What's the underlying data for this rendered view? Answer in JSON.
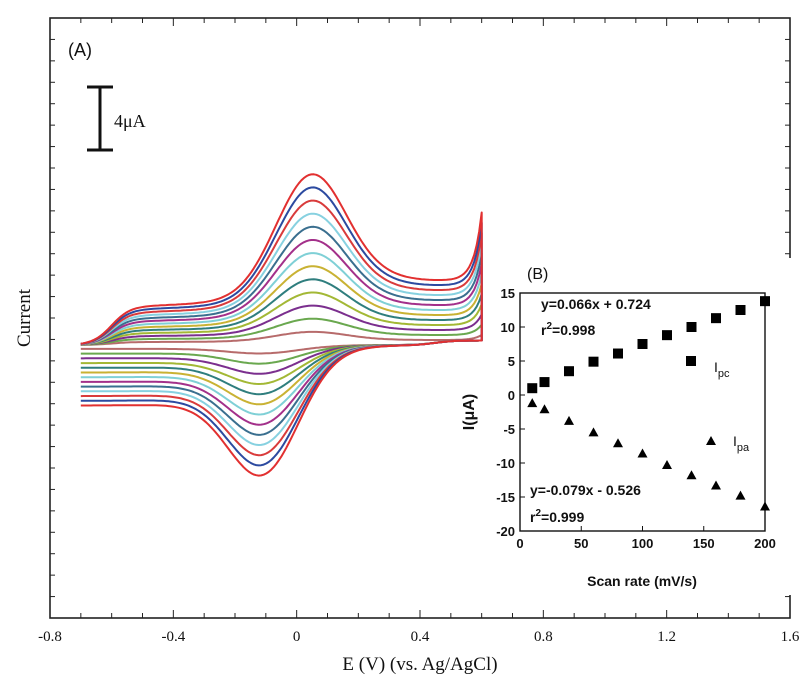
{
  "chart_data": [
    {
      "panel_label": "(A)",
      "type": "line",
      "title": "",
      "xlabel": "E (V) (vs. Ag/AgCl)",
      "ylabel": "Current",
      "xlim": [
        -0.8,
        1.6
      ],
      "x_ticks": [
        "-0.8",
        "-0.4",
        "0",
        "0.4",
        "0.8",
        "1.2",
        "1.6"
      ],
      "scale_bar_label": "4μA",
      "grid": false,
      "legend": "none",
      "sweep": {
        "e_start": -0.7,
        "e_switch": 0.6,
        "peak_anodic_E": 0.05,
        "peak_cathodic_E": -0.1
      },
      "series": [
        {
          "color": "#b76b6b",
          "ipa": 1.2,
          "ipc": -1.0
        },
        {
          "color": "#6aa84f",
          "ipa": 2.4,
          "ipc": -2.2
        },
        {
          "color": "#7b2f8e",
          "ipa": 3.6,
          "ipc": -3.4
        },
        {
          "color": "#a3b835",
          "ipa": 4.8,
          "ipc": -4.6
        },
        {
          "color": "#2f7e7e",
          "ipa": 6.0,
          "ipc": -5.8
        },
        {
          "color": "#c9b233",
          "ipa": 7.2,
          "ipc": -7.0
        },
        {
          "color": "#7fd0d6",
          "ipa": 8.4,
          "ipc": -8.2
        },
        {
          "color": "#a3308a",
          "ipa": 9.6,
          "ipc": -9.4
        },
        {
          "color": "#3a6f8f",
          "ipa": 10.8,
          "ipc": -10.6
        },
        {
          "color": "#87d1e0",
          "ipa": 12.0,
          "ipc": -11.8
        },
        {
          "color": "#d93b3b",
          "ipa": 13.2,
          "ipc": -13.0
        },
        {
          "color": "#2c4aa0",
          "ipa": 14.4,
          "ipc": -14.2
        },
        {
          "color": "#e23030",
          "ipa": 15.6,
          "ipc": -15.4
        }
      ]
    },
    {
      "panel_label": "(B)",
      "type": "scatter",
      "title": "",
      "xlabel": "Scan rate (mV/s)",
      "ylabel": "I(μA)",
      "xlim": [
        0,
        200
      ],
      "ylim": [
        -20,
        15
      ],
      "x_ticks": [
        "0",
        "50",
        "100",
        "150",
        "200"
      ],
      "y_ticks": [
        "15",
        "10",
        "5",
        "0",
        "-5",
        "-10",
        "-15",
        "-20"
      ],
      "series": [
        {
          "name_main": "I",
          "name_sub": "pc",
          "marker": "square",
          "x": [
            10,
            20,
            40,
            60,
            80,
            100,
            120,
            140,
            160,
            180,
            200
          ],
          "y": [
            1.0,
            1.9,
            3.5,
            4.9,
            6.1,
            7.5,
            8.8,
            10.0,
            11.3,
            12.5,
            13.8
          ]
        },
        {
          "name_main": "I",
          "name_sub": "pa",
          "marker": "triangle",
          "x": [
            10,
            20,
            40,
            60,
            80,
            100,
            120,
            140,
            160,
            180,
            200
          ],
          "y": [
            -1.2,
            -2.1,
            -3.8,
            -5.5,
            -7.1,
            -8.6,
            -10.3,
            -11.8,
            -13.3,
            -14.8,
            -16.4
          ]
        }
      ],
      "annotations": {
        "fit_pc_eq": "y=0.066x + 0.724",
        "fit_pc_r2_main": "r",
        "fit_pc_r2_sup": "2",
        "fit_pc_r2_val": "=0.998",
        "fit_pa_eq": "y=-0.079x - 0.526",
        "fit_pa_r2_main": "r",
        "fit_pa_r2_sup": "2",
        "fit_pa_r2_val": "=0.999"
      }
    }
  ]
}
